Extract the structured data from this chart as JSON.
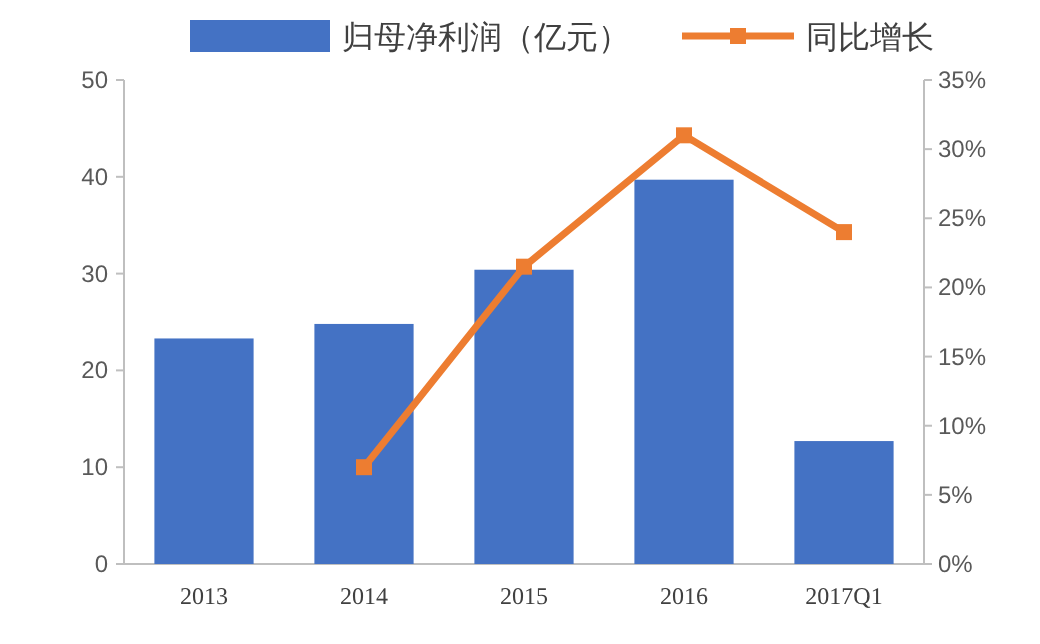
{
  "chart_data": {
    "type": "bar",
    "categories": [
      "2013",
      "2014",
      "2015",
      "2016",
      "2017Q1"
    ],
    "series": [
      {
        "name": "归母净利润（亿元）",
        "color": "#4472c4",
        "values": [
          23.3,
          24.8,
          30.4,
          39.7,
          12.7
        ]
      },
      {
        "name": "同比增长",
        "type": "line",
        "axis": "y2",
        "color": "#ed7d31",
        "marker": "square",
        "values": [
          null,
          7,
          21.5,
          31,
          24
        ]
      }
    ],
    "ylim": [
      0,
      50
    ],
    "yticks": [
      0,
      10,
      20,
      30,
      40,
      50
    ],
    "y2lim": [
      0,
      35
    ],
    "y2ticks": [
      {
        "value": 0,
        "label": "0%"
      },
      {
        "value": 5,
        "label": "5%"
      },
      {
        "value": 10,
        "label": "10%"
      },
      {
        "value": 15,
        "label": "15%"
      },
      {
        "value": 20,
        "label": "20%"
      },
      {
        "value": 25,
        "label": "25%"
      },
      {
        "value": 30,
        "label": "30%"
      },
      {
        "value": 35,
        "label": "35%"
      }
    ],
    "legend": "top",
    "grid": false
  }
}
